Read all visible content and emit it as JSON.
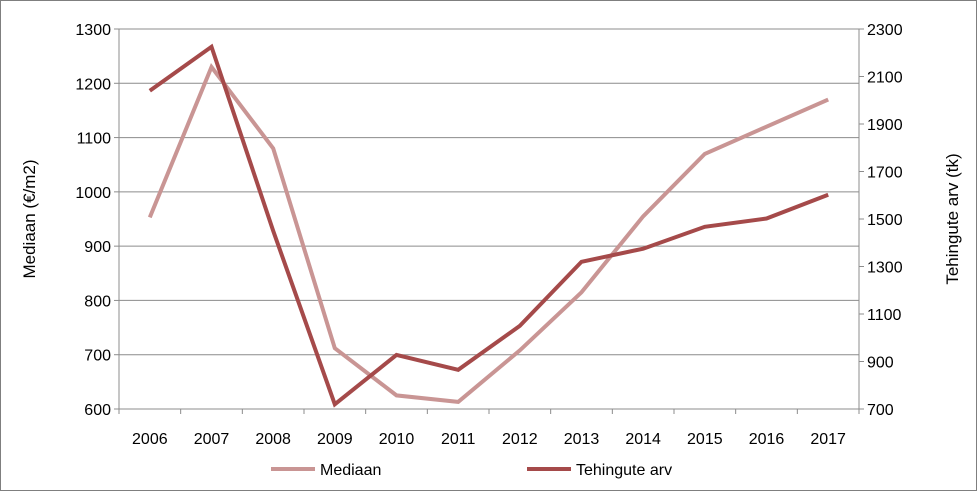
{
  "chart_data": {
    "type": "line",
    "title": "",
    "xlabel": "",
    "ylabel": "Mediaan (€/m2)",
    "y2label": "Tehingute arv (tk)",
    "categories": [
      "2006",
      "2007",
      "2008",
      "2009",
      "2010",
      "2011",
      "2012",
      "2013",
      "2014",
      "2015",
      "2016",
      "2017"
    ],
    "ylim": [
      600,
      1300
    ],
    "y2lim": [
      700,
      2300
    ],
    "yticks": [
      "600",
      "700",
      "800",
      "900",
      "1000",
      "1100",
      "1200",
      "1300"
    ],
    "y2ticks": [
      "700",
      "900",
      "1100",
      "1300",
      "1500",
      "1700",
      "1900",
      "2100",
      "2300"
    ],
    "grid": true,
    "legend_position": "bottom",
    "series": [
      {
        "name": "Mediaan",
        "axis": "left",
        "color": "#c99594",
        "values": [
          953,
          1230,
          1080,
          712,
          625,
          613,
          708,
          815,
          955,
          1070,
          1120,
          1170
        ]
      },
      {
        "name": "Tehingute arv",
        "axis": "right",
        "color": "#a54a4a",
        "values": [
          2040,
          2225,
          1450,
          720,
          928,
          865,
          1050,
          1320,
          1375,
          1467,
          1502,
          1602
        ]
      }
    ]
  }
}
